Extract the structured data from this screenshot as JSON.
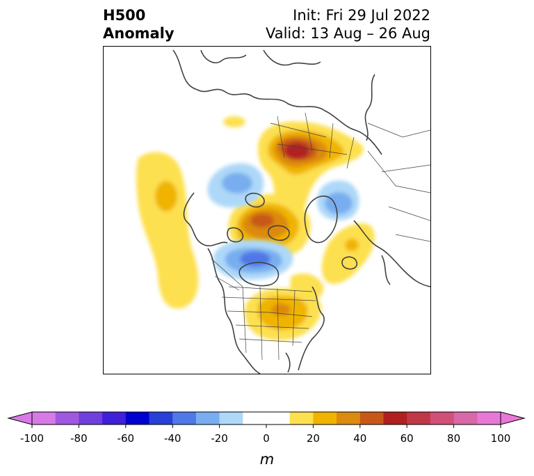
{
  "header": {
    "left_line1": "H500",
    "left_line2": "Anomaly",
    "right_line1": "Init: Fri 29 Jul 2022",
    "right_line2": "Valid: 13 Aug – 26 Aug"
  },
  "colorbar": {
    "unit": "m",
    "min": -100,
    "max": 100,
    "step": 10,
    "tick_labels": [
      "-100",
      "-80",
      "-60",
      "-40",
      "-20",
      "0",
      "20",
      "40",
      "60",
      "80",
      "100"
    ],
    "colors": [
      "#d77ae6",
      "#a058e0",
      "#7040dc",
      "#4020d8",
      "#0000d0",
      "#2840d8",
      "#5078e6",
      "#78aef0",
      "#aed8f8",
      "#ffffff",
      "#ffffff",
      "#fde050",
      "#f0b400",
      "#dc8a10",
      "#c85818",
      "#b02020",
      "#c03848",
      "#d05078",
      "#d868a8",
      "#e878d8"
    ],
    "extend": "both"
  },
  "map": {
    "projection": "north-polar-stereographic",
    "region": "North America and Arctic",
    "field": "500 hPa geopotential height anomaly",
    "features": [
      "coastlines",
      "country borders",
      "US state borders",
      "Canadian province borders"
    ]
  }
}
